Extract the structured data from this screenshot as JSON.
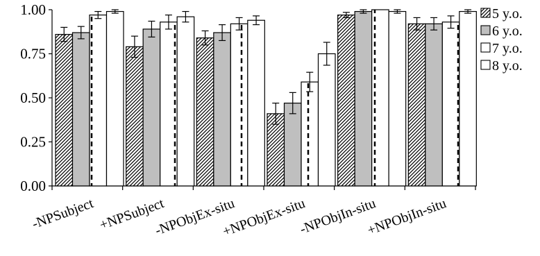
{
  "chart_data": {
    "type": "bar",
    "categories": [
      "-NPSubject",
      "+NPSubject",
      "-NPObjEx-situ",
      "+NPObjEx-situ",
      "-NPObjIn-situ",
      "+NPObjIn-situ"
    ],
    "series": [
      {
        "name": "5 y.o.",
        "pattern": "diagonal-hatch",
        "values": [
          0.86,
          0.79,
          0.84,
          0.41,
          0.97,
          0.92
        ],
        "errors": [
          0.04,
          0.06,
          0.04,
          0.06,
          0.015,
          0.035
        ]
      },
      {
        "name": "6 y.o.",
        "pattern": "gray-fill",
        "color": "#bfbfbf",
        "values": [
          0.87,
          0.89,
          0.87,
          0.47,
          0.99,
          0.92
        ],
        "errors": [
          0.035,
          0.045,
          0.045,
          0.06,
          0.01,
          0.035
        ]
      },
      {
        "name": "7 y.o.",
        "pattern": "dashed-stripe",
        "values": [
          0.97,
          0.93,
          0.92,
          0.59,
          1.0,
          0.93
        ],
        "errors": [
          0.02,
          0.04,
          0.035,
          0.055,
          0.0,
          0.035
        ]
      },
      {
        "name": "8 y.o.",
        "pattern": "white-fill",
        "color": "#ffffff",
        "values": [
          0.99,
          0.96,
          0.94,
          0.75,
          0.99,
          0.99
        ],
        "errors": [
          0.01,
          0.03,
          0.025,
          0.065,
          0.01,
          0.01
        ]
      }
    ],
    "yticks": [
      "0.00",
      "0.25",
      "0.50",
      "0.75",
      "1.00"
    ],
    "ylim": [
      0,
      1
    ],
    "grid": false,
    "legend_position": "top-right",
    "title": "",
    "xlabel": "",
    "ylabel": ""
  }
}
